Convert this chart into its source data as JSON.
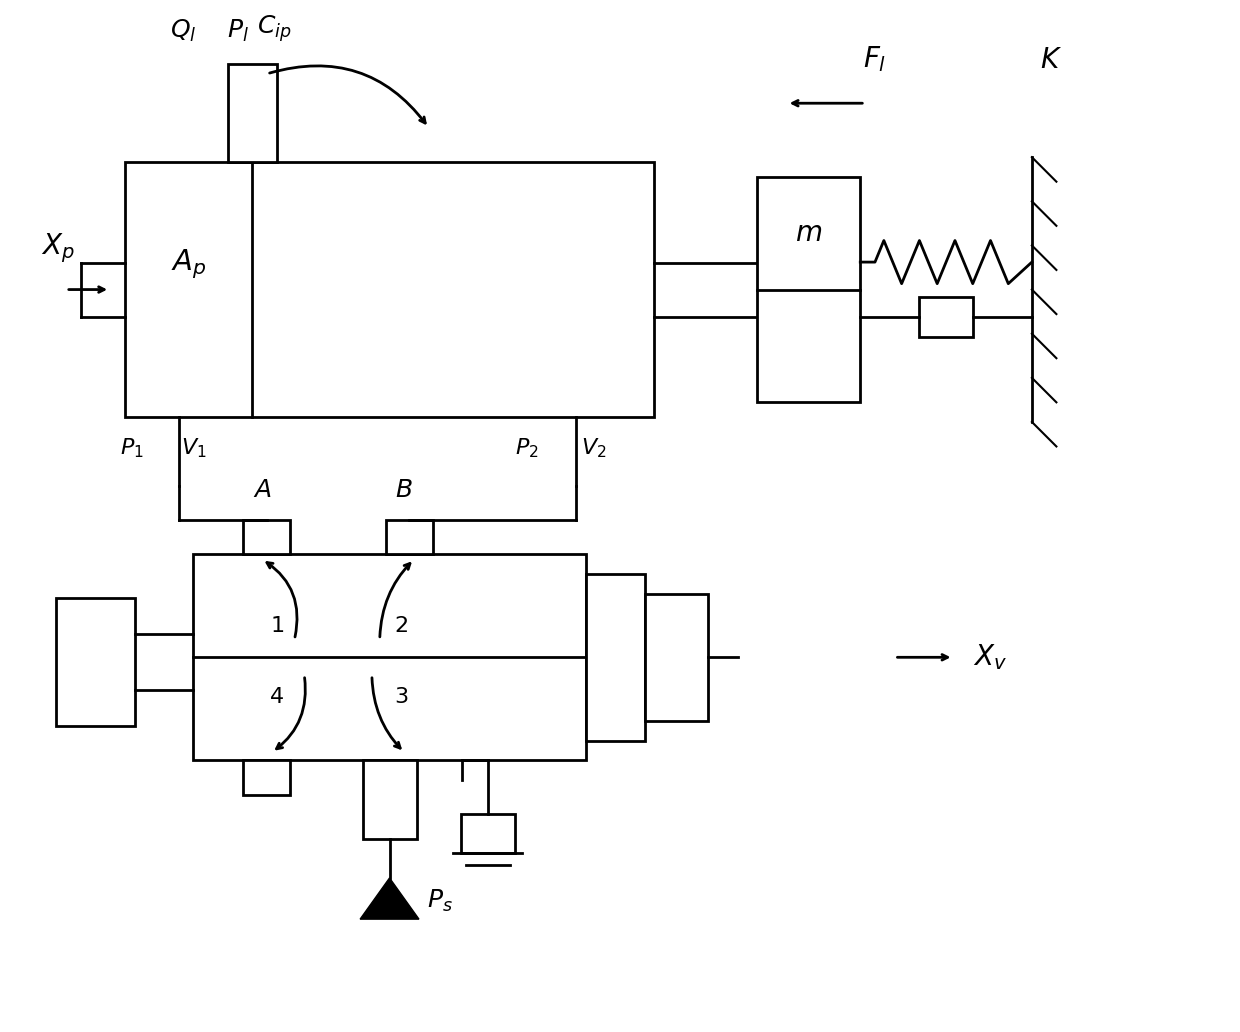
{
  "bg_color": "#ffffff",
  "line_color": "#000000",
  "lw": 2.0,
  "lw_thin": 1.5,
  "fs": 18,
  "fig_w": 12.4,
  "fig_h": 10.32
}
